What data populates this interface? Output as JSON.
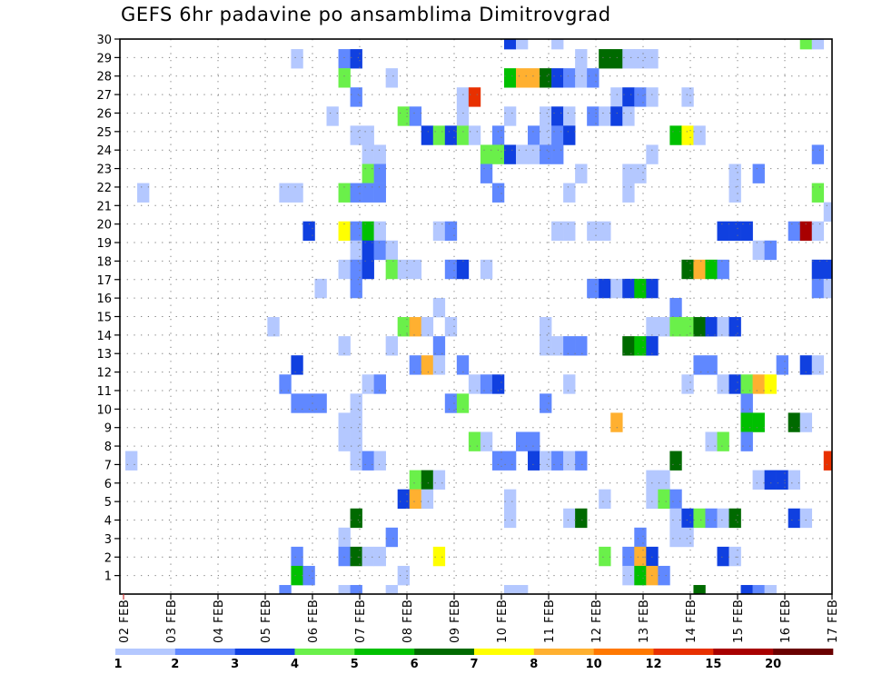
{
  "chart_data": {
    "type": "heatmap",
    "title": "GEFS 6hr padavine po ansamblima Dimitrovgrad",
    "xlabel": "",
    "ylabel": "",
    "x_tick_labels": [
      "02 FEB",
      "03 FEB",
      "04 FEB",
      "05 FEB",
      "06 FEB",
      "07 FEB",
      "08 FEB",
      "09 FEB",
      "10 FEB",
      "11 FEB",
      "12 FEB",
      "13 FEB",
      "14 FEB",
      "15 FEB",
      "16 FEB",
      "17 FEB"
    ],
    "y_tick_labels": [
      "1",
      "2",
      "3",
      "4",
      "5",
      "6",
      "7",
      "8",
      "9",
      "10",
      "11",
      "12",
      "13",
      "14",
      "15",
      "16",
      "17",
      "18",
      "19",
      "20",
      "21",
      "22",
      "23",
      "24",
      "25",
      "26",
      "27",
      "28",
      "29",
      "30"
    ],
    "time_steps_per_day": 4,
    "grid": true,
    "legend": {
      "placement": "bottom",
      "labels": [
        "1",
        "2",
        "3",
        "4",
        "5",
        "6",
        "7",
        "8",
        "10",
        "12",
        "15",
        "20"
      ],
      "colors": [
        "#b4c8ff",
        "#6088ff",
        "#1040e0",
        "#6af04a",
        "#00c000",
        "#006a00",
        "#ffff00",
        "#ffb030",
        "#ff7800",
        "#e83000",
        "#a80000",
        "#6a0000"
      ]
    },
    "cells_note": "each cell = [member_row_from_top, time_step_index, precip_class_index(1-12)]",
    "cells": [
      [
        0,
        32,
        3
      ],
      [
        0,
        33,
        1
      ],
      [
        0,
        36,
        1
      ],
      [
        0,
        57,
        4
      ],
      [
        0,
        58,
        1
      ],
      [
        1,
        14,
        1
      ],
      [
        1,
        18,
        2
      ],
      [
        1,
        19,
        3
      ],
      [
        1,
        38,
        1
      ],
      [
        1,
        40,
        6
      ],
      [
        1,
        41,
        6
      ],
      [
        1,
        42,
        1
      ],
      [
        1,
        43,
        1
      ],
      [
        1,
        44,
        1
      ],
      [
        2,
        18,
        4
      ],
      [
        2,
        22,
        1
      ],
      [
        2,
        32,
        5
      ],
      [
        2,
        33,
        8
      ],
      [
        2,
        34,
        8
      ],
      [
        2,
        35,
        6
      ],
      [
        2,
        36,
        3
      ],
      [
        2,
        37,
        2
      ],
      [
        2,
        38,
        1
      ],
      [
        2,
        39,
        2
      ],
      [
        3,
        19,
        2
      ],
      [
        3,
        28,
        1
      ],
      [
        3,
        29,
        10
      ],
      [
        3,
        41,
        1
      ],
      [
        3,
        42,
        3
      ],
      [
        3,
        43,
        2
      ],
      [
        3,
        44,
        1
      ],
      [
        3,
        47,
        1
      ],
      [
        4,
        17,
        1
      ],
      [
        4,
        23,
        4
      ],
      [
        4,
        24,
        2
      ],
      [
        4,
        28,
        1
      ],
      [
        4,
        32,
        1
      ],
      [
        4,
        35,
        1
      ],
      [
        4,
        36,
        3
      ],
      [
        4,
        37,
        1
      ],
      [
        4,
        39,
        2
      ],
      [
        4,
        40,
        1
      ],
      [
        4,
        41,
        3
      ],
      [
        4,
        42,
        1
      ],
      [
        5,
        19,
        1
      ],
      [
        5,
        20,
        1
      ],
      [
        5,
        25,
        3
      ],
      [
        5,
        26,
        4
      ],
      [
        5,
        27,
        3
      ],
      [
        5,
        28,
        4
      ],
      [
        5,
        29,
        1
      ],
      [
        5,
        31,
        2
      ],
      [
        5,
        34,
        2
      ],
      [
        5,
        35,
        1
      ],
      [
        5,
        36,
        2
      ],
      [
        5,
        37,
        3
      ],
      [
        5,
        46,
        5
      ],
      [
        5,
        47,
        7
      ],
      [
        5,
        48,
        1
      ],
      [
        6,
        20,
        1
      ],
      [
        6,
        21,
        1
      ],
      [
        6,
        30,
        4
      ],
      [
        6,
        31,
        4
      ],
      [
        6,
        32,
        3
      ],
      [
        6,
        33,
        1
      ],
      [
        6,
        34,
        1
      ],
      [
        6,
        35,
        2
      ],
      [
        6,
        36,
        2
      ],
      [
        6,
        44,
        1
      ],
      [
        6,
        58,
        2
      ],
      [
        7,
        20,
        4
      ],
      [
        7,
        21,
        2
      ],
      [
        7,
        30,
        2
      ],
      [
        7,
        38,
        1
      ],
      [
        7,
        42,
        1
      ],
      [
        7,
        43,
        1
      ],
      [
        7,
        51,
        1
      ],
      [
        7,
        53,
        2
      ],
      [
        8,
        1,
        1
      ],
      [
        8,
        13,
        1
      ],
      [
        8,
        14,
        1
      ],
      [
        8,
        18,
        4
      ],
      [
        8,
        19,
        2
      ],
      [
        8,
        20,
        2
      ],
      [
        8,
        21,
        2
      ],
      [
        8,
        31,
        2
      ],
      [
        8,
        37,
        1
      ],
      [
        8,
        42,
        1
      ],
      [
        8,
        51,
        1
      ],
      [
        8,
        58,
        4
      ],
      [
        9,
        59,
        1
      ],
      [
        10,
        15,
        3
      ],
      [
        10,
        18,
        7
      ],
      [
        10,
        19,
        2
      ],
      [
        10,
        20,
        5
      ],
      [
        10,
        21,
        1
      ],
      [
        10,
        26,
        1
      ],
      [
        10,
        27,
        2
      ],
      [
        10,
        36,
        1
      ],
      [
        10,
        37,
        1
      ],
      [
        10,
        39,
        1
      ],
      [
        10,
        40,
        1
      ],
      [
        10,
        50,
        3
      ],
      [
        10,
        51,
        3
      ],
      [
        10,
        52,
        3
      ],
      [
        10,
        56,
        2
      ],
      [
        10,
        57,
        11
      ],
      [
        10,
        58,
        1
      ],
      [
        11,
        19,
        1
      ],
      [
        11,
        20,
        3
      ],
      [
        11,
        21,
        2
      ],
      [
        11,
        22,
        1
      ],
      [
        11,
        53,
        1
      ],
      [
        11,
        54,
        2
      ],
      [
        12,
        18,
        1
      ],
      [
        12,
        19,
        2
      ],
      [
        12,
        20,
        3
      ],
      [
        12,
        22,
        4
      ],
      [
        12,
        23,
        1
      ],
      [
        12,
        24,
        1
      ],
      [
        12,
        27,
        2
      ],
      [
        12,
        28,
        3
      ],
      [
        12,
        30,
        1
      ],
      [
        12,
        47,
        6
      ],
      [
        12,
        48,
        8
      ],
      [
        12,
        49,
        5
      ],
      [
        12,
        50,
        2
      ],
      [
        12,
        58,
        3
      ],
      [
        12,
        59,
        3
      ],
      [
        13,
        16,
        1
      ],
      [
        13,
        19,
        2
      ],
      [
        13,
        39,
        2
      ],
      [
        13,
        40,
        3
      ],
      [
        13,
        41,
        1
      ],
      [
        13,
        42,
        3
      ],
      [
        13,
        43,
        5
      ],
      [
        13,
        44,
        3
      ],
      [
        13,
        58,
        2
      ],
      [
        13,
        59,
        1
      ],
      [
        14,
        26,
        1
      ],
      [
        14,
        46,
        2
      ],
      [
        15,
        12,
        1
      ],
      [
        15,
        23,
        4
      ],
      [
        15,
        24,
        8
      ],
      [
        15,
        25,
        1
      ],
      [
        15,
        27,
        1
      ],
      [
        15,
        35,
        1
      ],
      [
        15,
        44,
        1
      ],
      [
        15,
        45,
        1
      ],
      [
        15,
        46,
        4
      ],
      [
        15,
        47,
        4
      ],
      [
        15,
        48,
        6
      ],
      [
        15,
        49,
        3
      ],
      [
        15,
        50,
        1
      ],
      [
        15,
        51,
        3
      ],
      [
        16,
        18,
        1
      ],
      [
        16,
        22,
        1
      ],
      [
        16,
        26,
        2
      ],
      [
        16,
        35,
        1
      ],
      [
        16,
        36,
        1
      ],
      [
        16,
        37,
        2
      ],
      [
        16,
        38,
        2
      ],
      [
        16,
        42,
        6
      ],
      [
        16,
        43,
        5
      ],
      [
        16,
        44,
        3
      ],
      [
        17,
        14,
        3
      ],
      [
        17,
        24,
        2
      ],
      [
        17,
        25,
        8
      ],
      [
        17,
        26,
        1
      ],
      [
        17,
        28,
        2
      ],
      [
        17,
        48,
        2
      ],
      [
        17,
        49,
        2
      ],
      [
        17,
        55,
        2
      ],
      [
        17,
        57,
        3
      ],
      [
        17,
        58,
        1
      ],
      [
        18,
        13,
        2
      ],
      [
        18,
        20,
        1
      ],
      [
        18,
        21,
        2
      ],
      [
        18,
        29,
        1
      ],
      [
        18,
        30,
        2
      ],
      [
        18,
        31,
        3
      ],
      [
        18,
        37,
        1
      ],
      [
        18,
        47,
        1
      ],
      [
        18,
        50,
        1
      ],
      [
        18,
        51,
        3
      ],
      [
        18,
        52,
        4
      ],
      [
        18,
        53,
        8
      ],
      [
        18,
        54,
        7
      ],
      [
        19,
        14,
        2
      ],
      [
        19,
        15,
        2
      ],
      [
        19,
        16,
        2
      ],
      [
        19,
        19,
        1
      ],
      [
        19,
        27,
        2
      ],
      [
        19,
        28,
        4
      ],
      [
        19,
        35,
        2
      ],
      [
        19,
        52,
        2
      ],
      [
        20,
        18,
        1
      ],
      [
        20,
        19,
        1
      ],
      [
        20,
        41,
        8
      ],
      [
        20,
        52,
        5
      ],
      [
        20,
        53,
        5
      ],
      [
        20,
        56,
        6
      ],
      [
        20,
        57,
        1
      ],
      [
        21,
        18,
        1
      ],
      [
        21,
        19,
        1
      ],
      [
        21,
        29,
        4
      ],
      [
        21,
        30,
        1
      ],
      [
        21,
        33,
        2
      ],
      [
        21,
        34,
        2
      ],
      [
        21,
        49,
        1
      ],
      [
        21,
        50,
        4
      ],
      [
        21,
        52,
        2
      ],
      [
        22,
        0,
        1
      ],
      [
        22,
        19,
        1
      ],
      [
        22,
        20,
        2
      ],
      [
        22,
        21,
        1
      ],
      [
        22,
        31,
        2
      ],
      [
        22,
        32,
        2
      ],
      [
        22,
        34,
        3
      ],
      [
        22,
        35,
        1
      ],
      [
        22,
        36,
        2
      ],
      [
        22,
        37,
        1
      ],
      [
        22,
        38,
        2
      ],
      [
        22,
        46,
        6
      ],
      [
        22,
        59,
        10
      ],
      [
        23,
        24,
        4
      ],
      [
        23,
        25,
        6
      ],
      [
        23,
        26,
        1
      ],
      [
        23,
        44,
        1
      ],
      [
        23,
        45,
        1
      ],
      [
        23,
        53,
        1
      ],
      [
        23,
        54,
        3
      ],
      [
        23,
        55,
        3
      ],
      [
        23,
        56,
        1
      ],
      [
        24,
        23,
        3
      ],
      [
        24,
        24,
        8
      ],
      [
        24,
        25,
        1
      ],
      [
        24,
        32,
        1
      ],
      [
        24,
        40,
        1
      ],
      [
        24,
        44,
        1
      ],
      [
        24,
        45,
        4
      ],
      [
        24,
        46,
        2
      ],
      [
        25,
        19,
        6
      ],
      [
        25,
        32,
        1
      ],
      [
        25,
        37,
        1
      ],
      [
        25,
        38,
        6
      ],
      [
        25,
        46,
        1
      ],
      [
        25,
        47,
        3
      ],
      [
        25,
        48,
        4
      ],
      [
        25,
        49,
        2
      ],
      [
        25,
        50,
        1
      ],
      [
        25,
        51,
        6
      ],
      [
        25,
        56,
        3
      ],
      [
        25,
        57,
        1
      ],
      [
        26,
        18,
        1
      ],
      [
        26,
        22,
        2
      ],
      [
        26,
        43,
        2
      ],
      [
        26,
        46,
        1
      ],
      [
        26,
        47,
        1
      ],
      [
        27,
        14,
        2
      ],
      [
        27,
        18,
        2
      ],
      [
        27,
        19,
        6
      ],
      [
        27,
        20,
        1
      ],
      [
        27,
        21,
        1
      ],
      [
        27,
        26,
        7
      ],
      [
        27,
        40,
        4
      ],
      [
        27,
        42,
        2
      ],
      [
        27,
        43,
        8
      ],
      [
        27,
        44,
        3
      ],
      [
        27,
        50,
        3
      ],
      [
        27,
        51,
        1
      ],
      [
        28,
        14,
        5
      ],
      [
        28,
        15,
        2
      ],
      [
        28,
        23,
        1
      ],
      [
        28,
        42,
        1
      ],
      [
        28,
        43,
        5
      ],
      [
        28,
        44,
        8
      ],
      [
        28,
        45,
        2
      ],
      [
        29,
        13,
        2
      ],
      [
        29,
        18,
        1
      ],
      [
        29,
        19,
        2
      ],
      [
        29,
        22,
        1
      ],
      [
        29,
        32,
        1
      ],
      [
        29,
        33,
        1
      ],
      [
        29,
        48,
        6
      ],
      [
        29,
        52,
        3
      ],
      [
        29,
        53,
        2
      ],
      [
        29,
        54,
        1
      ]
    ]
  }
}
